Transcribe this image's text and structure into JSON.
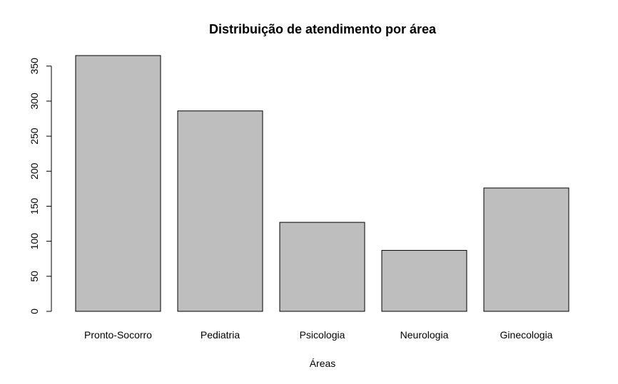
{
  "chart_data": {
    "type": "bar",
    "title": "Distribuição de atendimento por área",
    "xlabel": "Áreas",
    "ylabel": "",
    "categories": [
      "Pronto-Socorro",
      "Pediatria",
      "Psicologia",
      "Neurologia",
      "Ginecologia"
    ],
    "values": [
      365,
      286,
      127,
      87,
      176
    ],
    "ylim": [
      0,
      365
    ],
    "yticks": [
      0,
      50,
      100,
      150,
      200,
      250,
      300,
      350
    ],
    "grid": false,
    "legend": "none",
    "colors": {
      "bar_fill": "#bebebe",
      "bar_stroke": "#000000"
    }
  }
}
